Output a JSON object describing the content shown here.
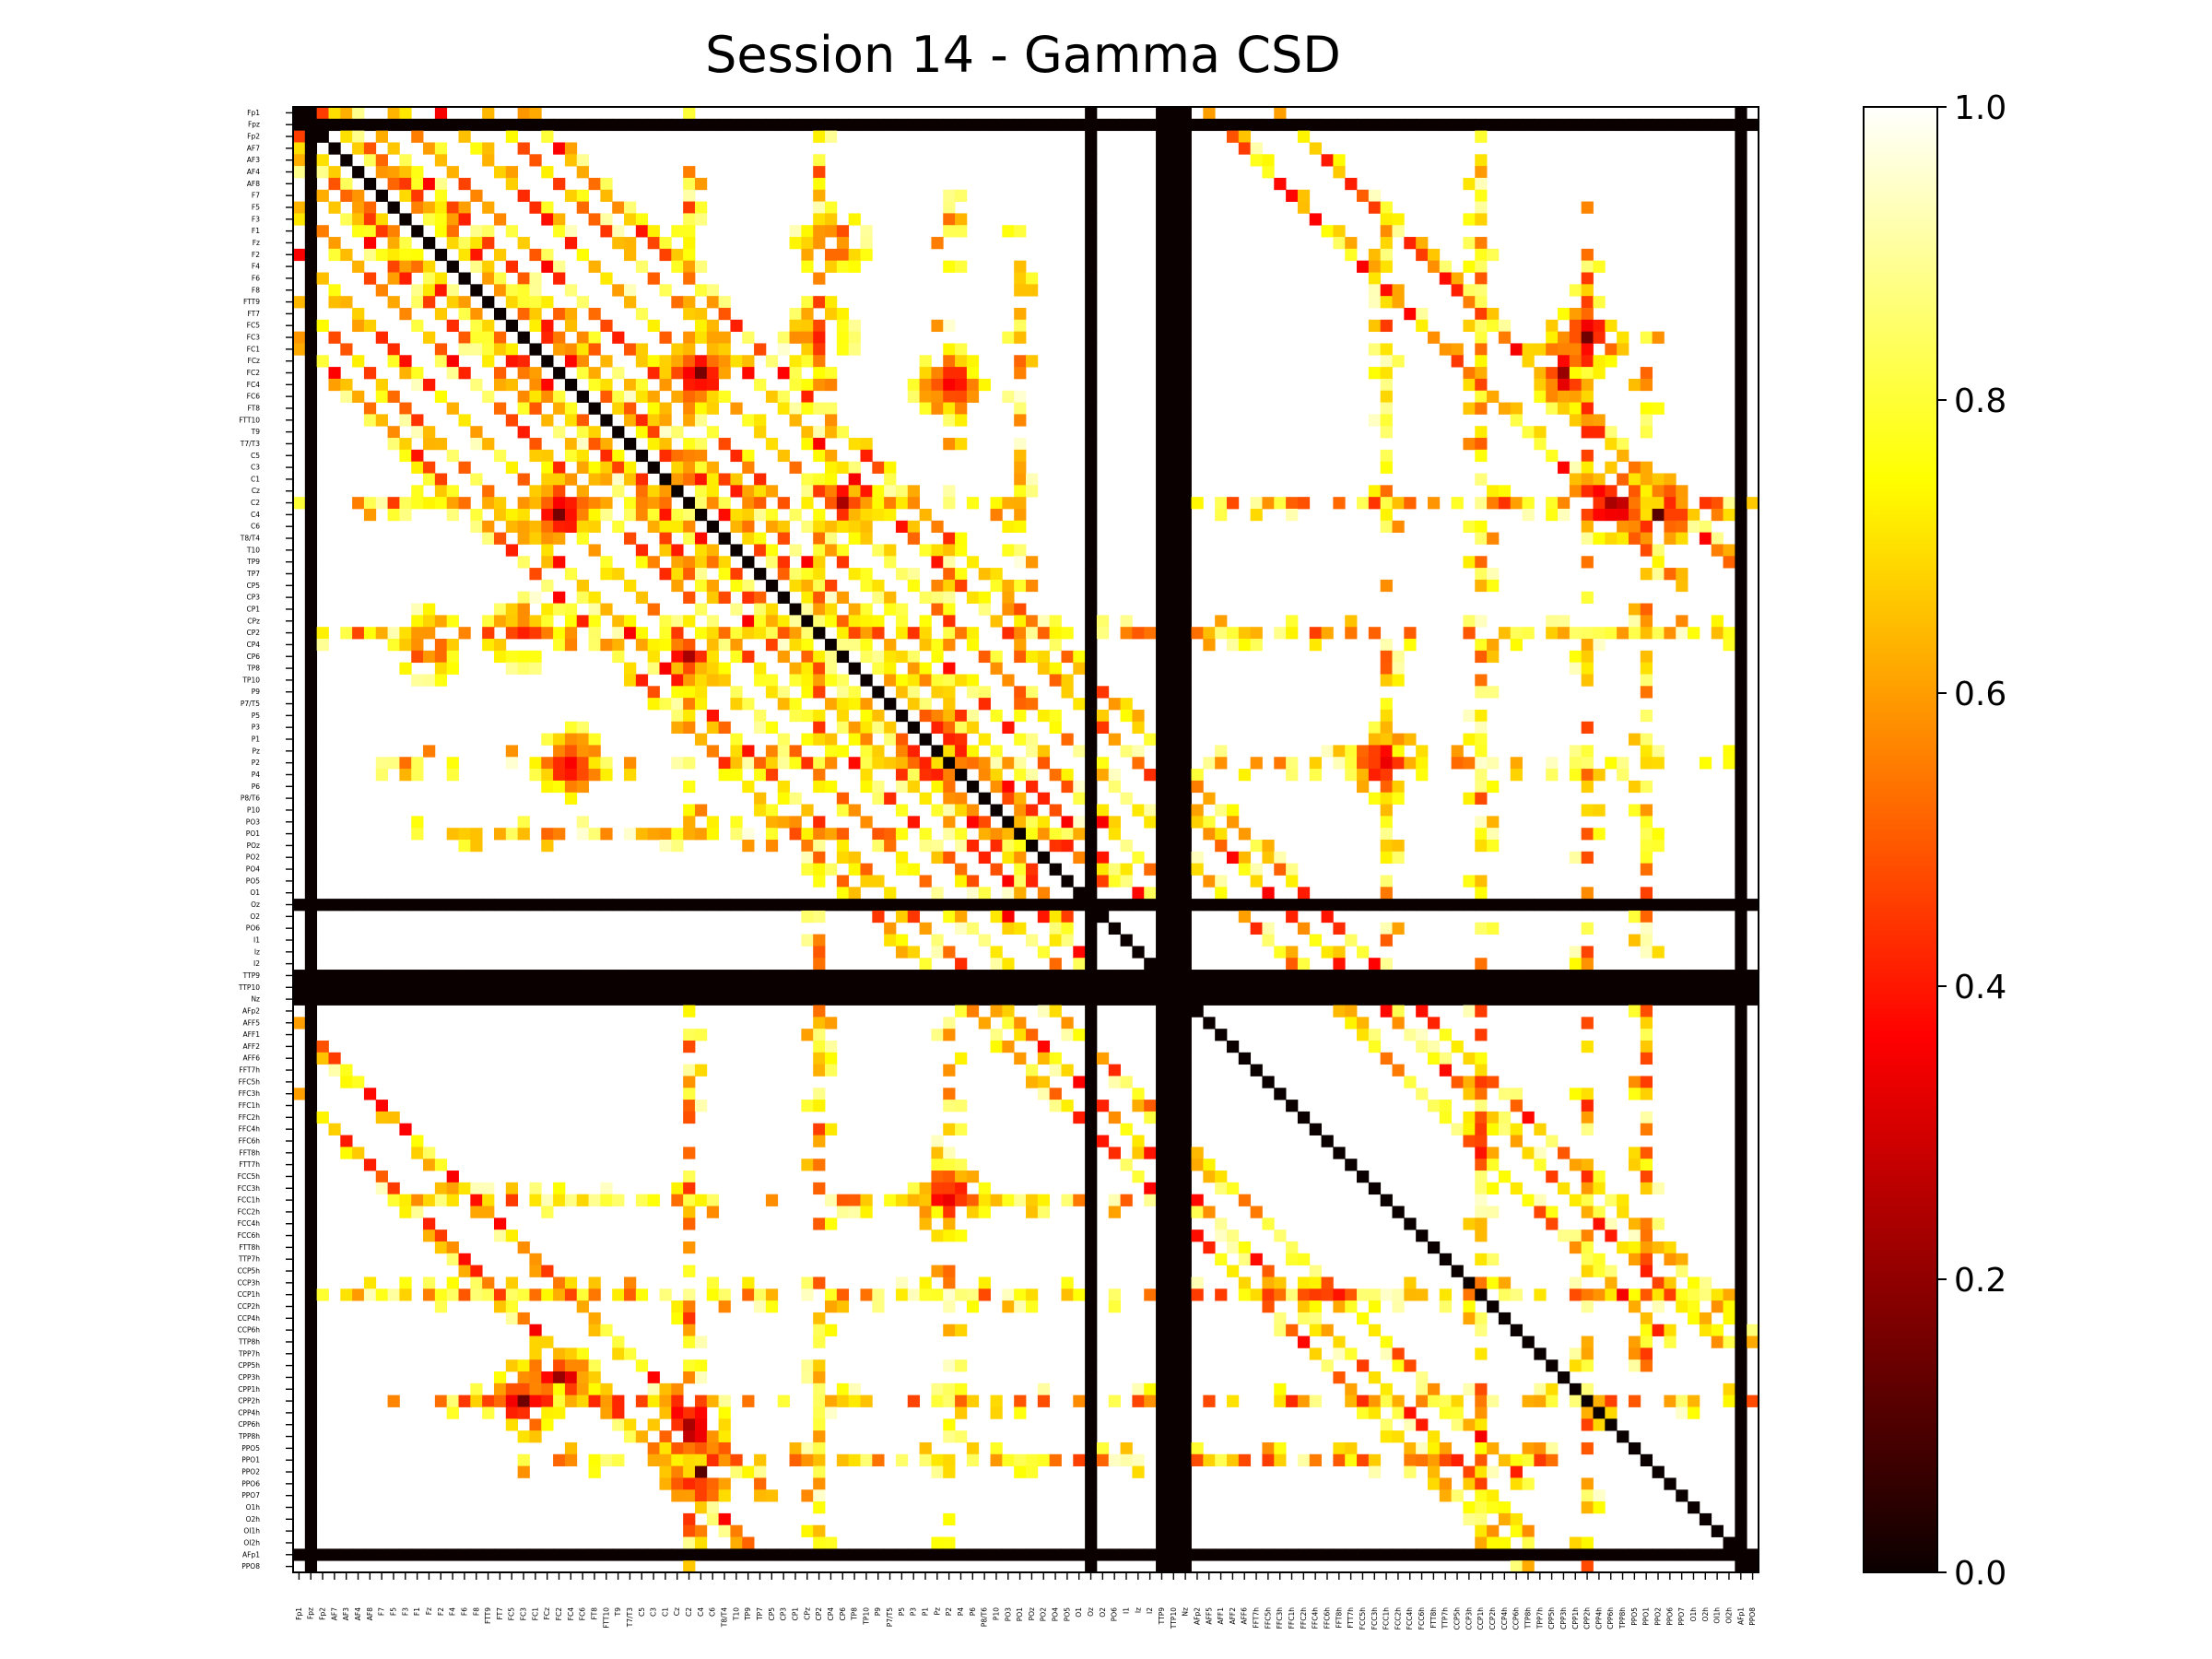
{
  "chart_data": {
    "type": "heatmap",
    "title": "Session 14 - Gamma CSD",
    "colormap": "hot",
    "clim": [
      0.0,
      1.0
    ],
    "colorbar_ticks": [
      "0.0",
      "0.2",
      "0.4",
      "0.6",
      "0.8",
      "1.0"
    ],
    "channels": [
      "Fp1",
      "Fpz",
      "Fp2",
      "AF7",
      "AF3",
      "AF4",
      "AF8",
      "F7",
      "F5",
      "F3",
      "F1",
      "Fz",
      "F2",
      "F4",
      "F6",
      "F8",
      "FTT9",
      "FT7",
      "FC5",
      "FC3",
      "FC1",
      "FCz",
      "FC2",
      "FC4",
      "FC6",
      "FT8",
      "FTT10",
      "T9",
      "T7/T3",
      "C5",
      "C3",
      "C1",
      "Cz",
      "C2",
      "C4",
      "C6",
      "T8/T4",
      "T10",
      "TP9",
      "TP7",
      "CP5",
      "CP3",
      "CP1",
      "CPz",
      "CP2",
      "CP4",
      "CP6",
      "TP8",
      "TP10",
      "P9",
      "P7/T5",
      "P5",
      "P3",
      "P1",
      "Pz",
      "P2",
      "P4",
      "P6",
      "P8/T6",
      "P10",
      "PO3",
      "PO1",
      "POz",
      "PO2",
      "PO4",
      "PO5",
      "O1",
      "Oz",
      "O2",
      "PO6",
      "I1",
      "Iz",
      "I2",
      "TTP9",
      "TTP10",
      "Nz",
      "AFp2",
      "AFF5",
      "AFF1",
      "AFF2",
      "AFF6",
      "FFT7h",
      "FFC5h",
      "FFC3h",
      "FFC1h",
      "FFC2h",
      "FFC4h",
      "FFC6h",
      "FFT8h",
      "FTT7h",
      "FCC5h",
      "FCC3h",
      "FCC1h",
      "FCC2h",
      "FCC4h",
      "FCC6h",
      "FTT8h",
      "TTP7h",
      "CCP5h",
      "CCP3h",
      "CCP1h",
      "CCP2h",
      "CCP4h",
      "CCP6h",
      "TTP8h",
      "TPP7h",
      "CPP5h",
      "CPP3h",
      "CPP1h",
      "CPP2h",
      "CPP4h",
      "CPP6h",
      "TPP8h",
      "PPO5",
      "PPO1",
      "PPO2",
      "PPO6",
      "PPO7",
      "O1h",
      "O2h",
      "OI1h",
      "OI2h",
      "AFp1",
      "PPO8"
    ],
    "zero_channels": [
      "Fpz",
      "Oz",
      "TTP9",
      "TTP10",
      "Nz",
      "AFp1"
    ],
    "diagonal_value": 0.0,
    "background_value": 1.0,
    "tracks": [
      {
        "from": "Fp2",
        "to": "PO4"
      },
      {
        "from": "AF7",
        "to": "O2"
      },
      {
        "from": "AF4",
        "to": "Iz"
      },
      {
        "from": "F5",
        "to": "I2"
      },
      {
        "from": "F2",
        "to": "PPO6"
      },
      {
        "from": "FTT9",
        "to": "OI1h"
      },
      {
        "from": "FC3",
        "to": "PPO8"
      },
      {
        "from": "AFF5",
        "to": "PPO7"
      },
      {
        "from": "FFC3h",
        "to": "OI2h"
      }
    ],
    "bands": [
      {
        "channel": "C2",
        "range": [
          "Fp1",
          "PO2"
        ],
        "value": 0.42
      },
      {
        "channel": "C2",
        "range": [
          "Nz",
          "PPO8"
        ],
        "value": 0.42
      },
      {
        "channel": "CP2",
        "range": [
          "Fp1",
          "PPO8"
        ],
        "value": 0.45
      },
      {
        "channel": "P2",
        "range": [
          "F7",
          "PO3"
        ],
        "value": 0.5
      },
      {
        "channel": "P2",
        "range": [
          "AFF5",
          "OI2h"
        ],
        "value": 0.5
      },
      {
        "channel": "FCC1h",
        "range": [
          "F5",
          "TTP9"
        ],
        "value": 0.45
      },
      {
        "channel": "CCP1h",
        "range": [
          "Fp1",
          "PPO8"
        ],
        "value": 0.45
      },
      {
        "channel": "CPP2h",
        "range": [
          "F5",
          "PPO8"
        ],
        "value": 0.4
      },
      {
        "channel": "PO1",
        "range": [
          "F3",
          "O1"
        ],
        "value": 0.5
      },
      {
        "channel": "PPO1",
        "range": [
          "FC3",
          "CPP5h"
        ],
        "value": 0.45
      }
    ],
    "blobs": [
      {
        "row": "FC2",
        "col": "C4",
        "value": 0.15
      },
      {
        "row": "C2",
        "col": "CP6",
        "value": 0.2
      },
      {
        "row": "CP2",
        "col": "FC3",
        "value": 0.25
      },
      {
        "row": "P2",
        "col": "FC4",
        "value": 0.2
      },
      {
        "row": "Fz",
        "col": "CP4",
        "value": 0.25
      },
      {
        "row": "PPO2",
        "col": "C4",
        "value": 0.1
      },
      {
        "row": "CPP2h",
        "col": "FC3",
        "value": 0.15
      },
      {
        "row": "FCC1h",
        "col": "P2",
        "value": 0.15
      },
      {
        "row": "FC2",
        "col": "CPP3h",
        "value": 0.15
      },
      {
        "row": "C2",
        "col": "CPP6h",
        "value": 0.1
      }
    ]
  }
}
